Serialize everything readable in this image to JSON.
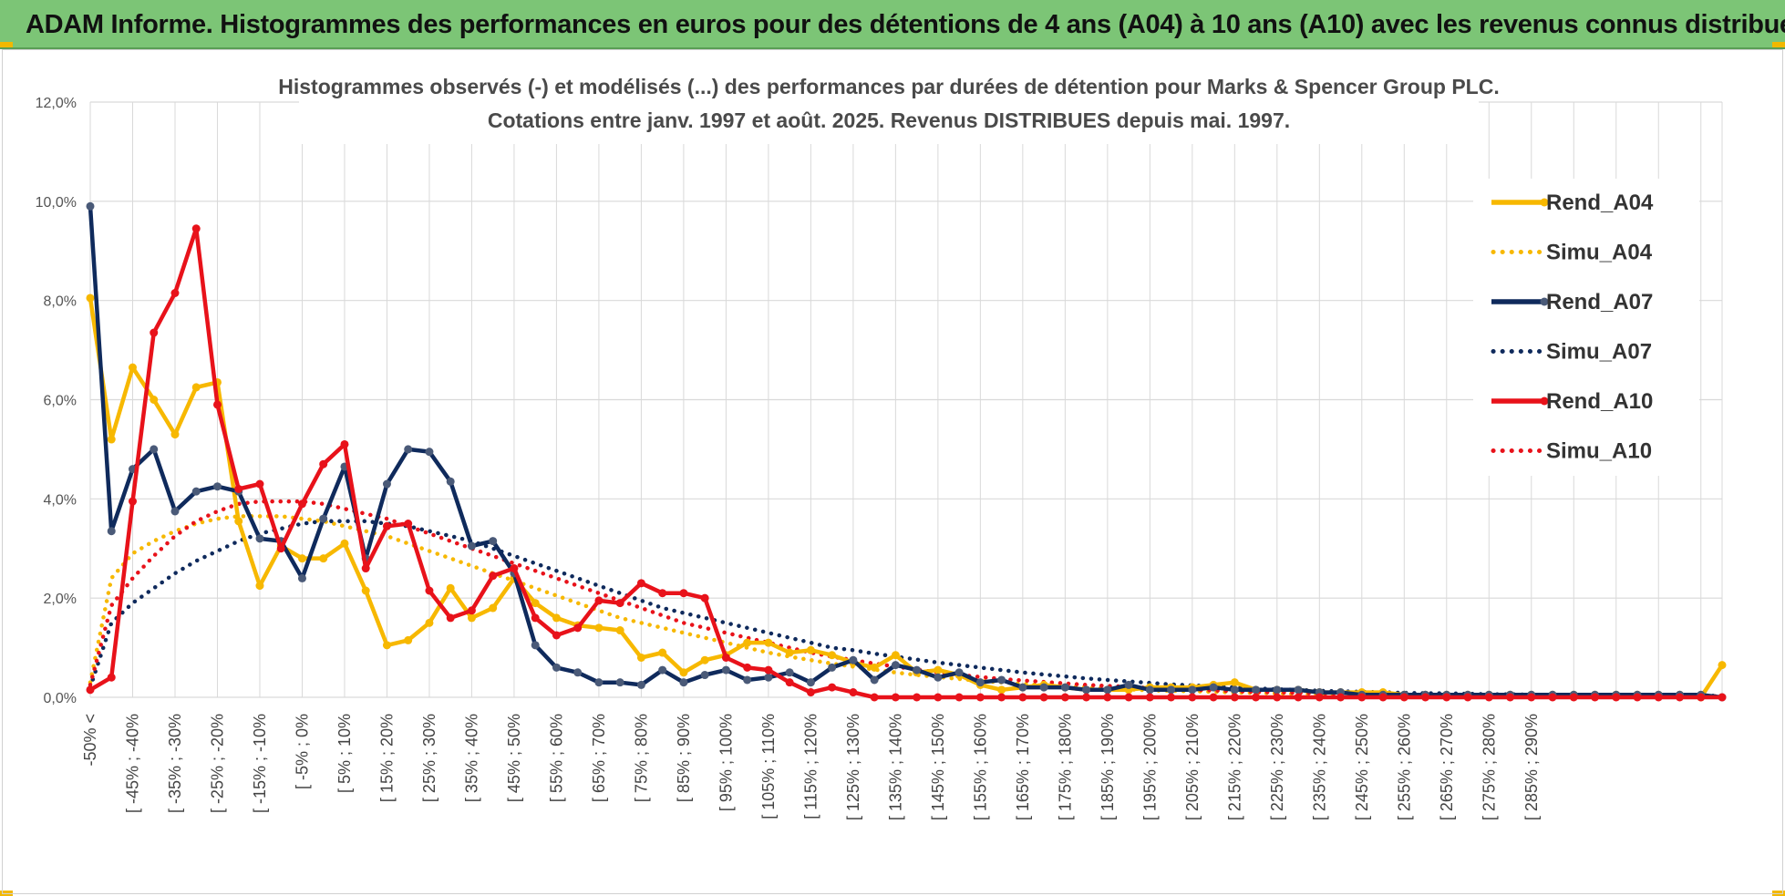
{
  "header": {
    "title": "ADAM Informe. Histogrammes des performances en euros pour des détentions de 4 ans (A04) à 10 ans (A10) avec les revenus connus distribués"
  },
  "colors": {
    "banner": "#7cc576",
    "A04": "#f7b800",
    "A07": "#0f2a5c",
    "A10": "#e8121a",
    "grid": "#d9d9d9"
  },
  "chart_data": {
    "type": "line",
    "title": "Histogrammes observés (-) et modélisés (...) des performances par durées de détention pour Marks & Spencer Group PLC.",
    "subtitle": "Cotations entre janv. 1997 et août. 2025. Revenus DISTRIBUES depuis mai. 1997.",
    "ylim": [
      0,
      12
    ],
    "y_ticks": [
      "0,0%",
      "2,0%",
      "4,0%",
      "6,0%",
      "8,0%",
      "10,0%",
      "12,0%"
    ],
    "x_tick_labels": [
      "-50% <",
      "[ -45% ; -40%",
      "[ -35% ; -30%",
      "[ -25% ; -20%",
      "[ -15% ; -10%",
      "[ -5% ; 0%",
      "[ 5% ; 10%",
      "[ 15% ; 20%",
      "[ 25% ; 30%",
      "[ 35% ; 40%",
      "[ 45% ; 50%",
      "[ 55% ; 60%",
      "[ 65% ; 70%",
      "[ 75% ; 80%",
      "[ 85% ; 90%",
      "[ 95% ; 100%",
      "[ 105% ; 110%",
      "[ 115% ; 120%",
      "[ 125% ; 130%",
      "[ 135% ; 140%",
      "[ 145% ; 150%",
      "[ 155% ; 160%",
      "[ 165% ; 170%",
      "[ 175% ; 180%",
      "[ 185% ; 190%",
      "[ 195% ; 200%",
      "[ 205% ; 210%",
      "[ 215% ; 220%",
      "[ 225% ; 230%",
      "[ 235% ; 240%",
      "[ 245% ; 250%",
      "[ 255% ; 260%",
      "[ 265% ; 270%",
      "[ 275% ; 280%",
      "[ 285% ; 290%"
    ],
    "legend_position": "right",
    "grid": true,
    "series": [
      {
        "name": "Rend_A04",
        "style": "solid",
        "color": "#f7b800",
        "values": [
          8.05,
          5.2,
          6.65,
          6.0,
          5.3,
          6.25,
          6.35,
          3.55,
          2.25,
          3.05,
          2.8,
          2.8,
          3.1,
          2.15,
          1.05,
          1.15,
          1.5,
          2.2,
          1.6,
          1.8,
          2.4,
          1.9,
          1.6,
          1.45,
          1.4,
          1.35,
          0.8,
          0.9,
          0.5,
          0.75,
          0.85,
          1.1,
          1.1,
          0.9,
          0.95,
          0.85,
          0.7,
          0.6,
          0.85,
          0.5,
          0.55,
          0.45,
          0.25,
          0.15,
          0.2,
          0.25,
          0.2,
          0.15,
          0.15,
          0.15,
          0.2,
          0.2,
          0.2,
          0.25,
          0.3,
          0.15,
          0.15,
          0.15,
          0.1,
          0.1,
          0.1,
          0.1,
          0.05,
          0.05,
          0.05,
          0.05,
          0.05,
          0.05,
          0.05,
          0.05,
          0.05,
          0.05,
          0.05,
          0.05,
          0.05,
          0.05,
          0.0,
          0.65
        ]
      },
      {
        "name": "Simu_A04",
        "style": "dotted",
        "color": "#f7b800",
        "values": [
          0.3,
          2.4,
          2.9,
          3.15,
          3.35,
          3.5,
          3.6,
          3.65,
          3.65,
          3.65,
          3.6,
          3.55,
          3.45,
          3.35,
          3.25,
          3.1,
          2.95,
          2.8,
          2.65,
          2.5,
          2.35,
          2.2,
          2.05,
          1.9,
          1.75,
          1.6,
          1.5,
          1.4,
          1.3,
          1.2,
          1.1,
          1.0,
          0.9,
          0.82,
          0.75,
          0.68,
          0.62,
          0.56,
          0.5,
          0.45,
          0.41,
          0.37,
          0.33,
          0.3,
          0.27,
          0.24,
          0.22,
          0.2,
          0.18,
          0.16,
          0.14,
          0.13,
          0.12,
          0.11,
          0.1,
          0.09,
          0.08,
          0.07,
          0.06,
          0.06,
          0.05,
          0.05,
          0.04,
          0.04,
          0.04,
          0.03,
          0.03,
          0.03,
          0.03,
          0.02,
          0.02,
          0.02,
          0.02,
          0.02,
          0.02,
          0.02,
          0.02,
          0.02
        ]
      },
      {
        "name": "Rend_A07",
        "style": "solid",
        "color": "#0f2a5c",
        "values": [
          9.9,
          3.35,
          4.6,
          5.0,
          3.75,
          4.15,
          4.25,
          4.15,
          3.2,
          3.15,
          2.4,
          3.6,
          4.65,
          2.8,
          4.3,
          5.0,
          4.95,
          4.35,
          3.05,
          3.15,
          2.5,
          1.05,
          0.6,
          0.5,
          0.3,
          0.3,
          0.25,
          0.55,
          0.3,
          0.45,
          0.55,
          0.35,
          0.4,
          0.5,
          0.3,
          0.6,
          0.75,
          0.35,
          0.65,
          0.55,
          0.4,
          0.5,
          0.3,
          0.35,
          0.2,
          0.2,
          0.2,
          0.15,
          0.15,
          0.25,
          0.15,
          0.15,
          0.15,
          0.2,
          0.15,
          0.15,
          0.15,
          0.15,
          0.1,
          0.1,
          0.05,
          0.05,
          0.05,
          0.05,
          0.05,
          0.05,
          0.05,
          0.05,
          0.05,
          0.05,
          0.05,
          0.05,
          0.05,
          0.05,
          0.05,
          0.05,
          0.05,
          0.0
        ]
      },
      {
        "name": "Simu_A07",
        "style": "dotted",
        "color": "#0f2a5c",
        "values": [
          0.2,
          1.5,
          1.9,
          2.2,
          2.5,
          2.75,
          2.95,
          3.15,
          3.3,
          3.4,
          3.5,
          3.55,
          3.55,
          3.55,
          3.5,
          3.45,
          3.35,
          3.25,
          3.15,
          3.0,
          2.85,
          2.7,
          2.55,
          2.4,
          2.25,
          2.1,
          1.95,
          1.8,
          1.7,
          1.6,
          1.5,
          1.4,
          1.3,
          1.2,
          1.1,
          1.0,
          0.95,
          0.88,
          0.82,
          0.76,
          0.7,
          0.65,
          0.6,
          0.55,
          0.5,
          0.46,
          0.42,
          0.38,
          0.35,
          0.32,
          0.29,
          0.26,
          0.24,
          0.22,
          0.2,
          0.18,
          0.16,
          0.15,
          0.13,
          0.12,
          0.11,
          0.1,
          0.09,
          0.08,
          0.08,
          0.07,
          0.06,
          0.06,
          0.05,
          0.05,
          0.05,
          0.04,
          0.04,
          0.04,
          0.03,
          0.03,
          0.03,
          0.03
        ]
      },
      {
        "name": "Rend_A10",
        "style": "solid",
        "color": "#e8121a",
        "values": [
          0.15,
          0.4,
          3.95,
          7.35,
          8.15,
          9.45,
          5.9,
          4.2,
          4.3,
          3.0,
          3.9,
          4.7,
          5.1,
          2.6,
          3.45,
          3.5,
          2.15,
          1.6,
          1.75,
          2.45,
          2.6,
          1.6,
          1.25,
          1.4,
          1.95,
          1.9,
          2.3,
          2.1,
          2.1,
          2.0,
          0.8,
          0.6,
          0.55,
          0.3,
          0.1,
          0.2,
          0.1,
          0.0,
          0.0,
          0.0,
          0.0,
          0.0,
          0.0,
          0.0,
          0.0,
          0.0,
          0.0,
          0.0,
          0.0,
          0.0,
          0.0,
          0.0,
          0.0,
          0.0,
          0.0,
          0.0,
          0.0,
          0.0,
          0.0,
          0.0,
          0.0,
          0.0,
          0.0,
          0.0,
          0.0,
          0.0,
          0.0,
          0.0,
          0.0,
          0.0,
          0.0,
          0.0,
          0.0,
          0.0,
          0.0,
          0.0,
          0.0,
          0.0
        ]
      },
      {
        "name": "Simu_A10",
        "style": "dotted",
        "color": "#e8121a",
        "values": [
          0.25,
          1.85,
          2.4,
          2.85,
          3.25,
          3.55,
          3.75,
          3.9,
          3.95,
          3.95,
          3.95,
          3.9,
          3.8,
          3.7,
          3.6,
          3.45,
          3.3,
          3.15,
          3.0,
          2.85,
          2.7,
          2.55,
          2.4,
          2.25,
          2.1,
          1.95,
          1.8,
          1.65,
          1.5,
          1.4,
          1.3,
          1.2,
          1.1,
          1.0,
          0.9,
          0.82,
          0.75,
          0.68,
          0.62,
          0.56,
          0.5,
          0.45,
          0.41,
          0.37,
          0.34,
          0.31,
          0.28,
          0.25,
          0.23,
          0.21,
          0.19,
          0.17,
          0.15,
          0.14,
          0.12,
          0.11,
          0.1,
          0.09,
          0.08,
          0.07,
          0.06,
          0.06,
          0.05,
          0.05,
          0.04,
          0.04,
          0.04,
          0.03,
          0.03,
          0.03,
          0.03,
          0.02,
          0.02,
          0.02,
          0.02,
          0.02,
          0.02,
          0.02
        ]
      }
    ]
  }
}
